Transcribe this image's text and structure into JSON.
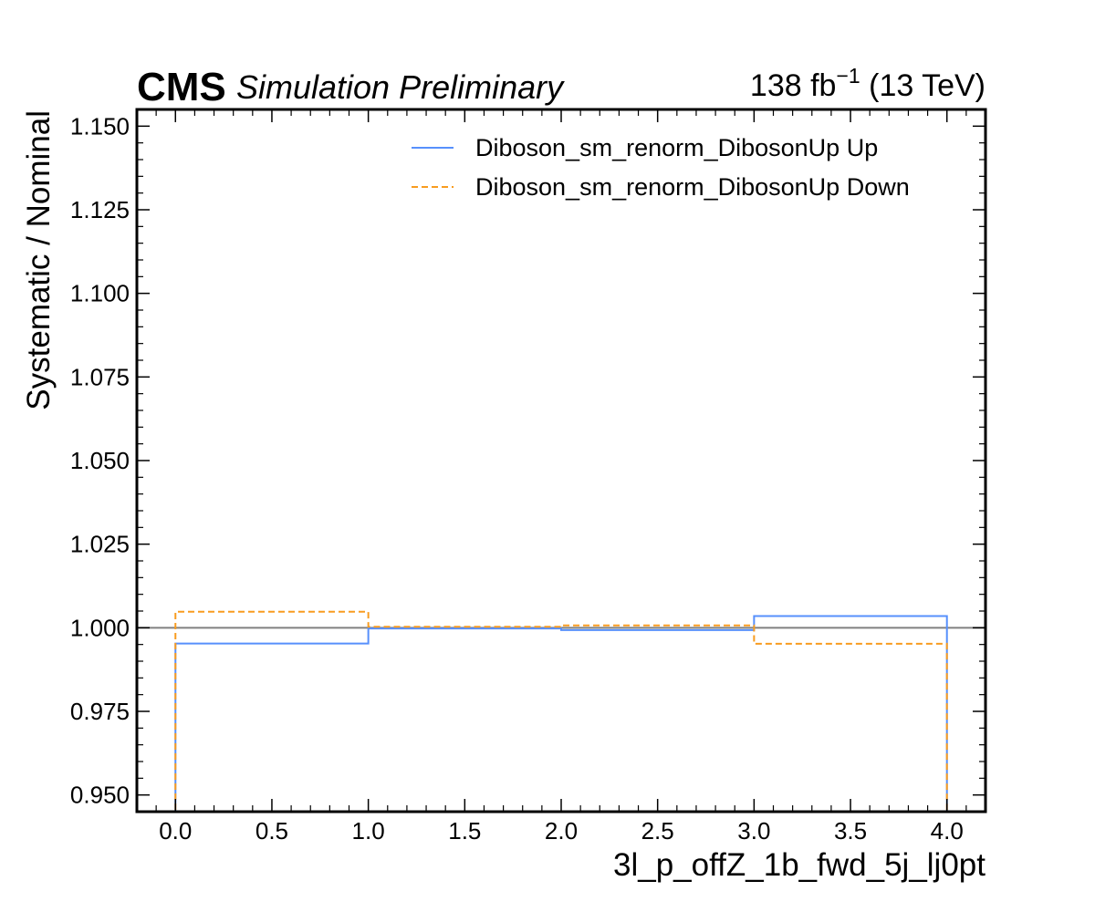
{
  "header": {
    "cms": "CMS",
    "subtitle": "Simulation Preliminary",
    "lumi": "138 fb",
    "lumi_exp": "−1",
    "energy": " (13 TeV)"
  },
  "chart_data": {
    "type": "line",
    "xlabel": "3l_p_offZ_1b_fwd_5j_lj0pt",
    "ylabel": "Systematic / Nominal",
    "xlim": [
      -0.2,
      4.2
    ],
    "ylim": [
      0.945,
      1.155
    ],
    "xticks": [
      "0.0",
      "0.5",
      "1.0",
      "1.5",
      "2.0",
      "2.5",
      "3.0",
      "3.5",
      "4.0"
    ],
    "yticks": [
      "0.950",
      "0.975",
      "1.000",
      "1.025",
      "1.050",
      "1.075",
      "1.100",
      "1.125",
      "1.150"
    ],
    "reference_line": 1.0,
    "bin_edges": [
      0,
      1,
      2,
      3,
      4
    ],
    "series": [
      {
        "name": "Diboson_sm_renorm_DibosonUp Up",
        "values": [
          0.9953,
          0.9998,
          0.9993,
          1.0035
        ],
        "color": "#5790fc",
        "style": "solid"
      },
      {
        "name": "Diboson_sm_renorm_DibosonUp Down",
        "values": [
          1.0048,
          1.0003,
          1.0007,
          0.9952
        ],
        "color": "#f89c20",
        "style": "dashed"
      }
    ],
    "legend_position": "top-right",
    "reference_color": "#808080"
  }
}
